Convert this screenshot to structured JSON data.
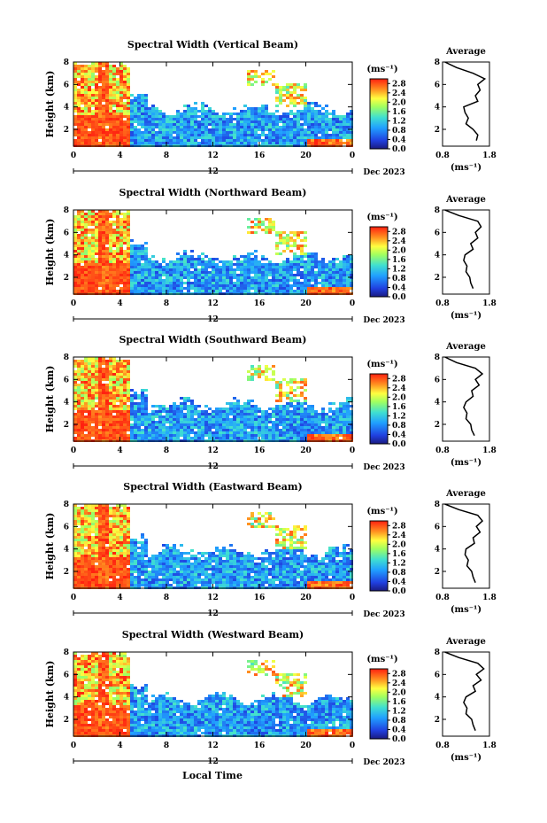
{
  "figure": {
    "xlabel": "Local Time",
    "date_label": "Dec 2023",
    "day_marker": "12",
    "colorbar_unit": "(ms⁻¹)",
    "profile_title": "Average",
    "profile_xlabel": "(ms⁻¹)"
  },
  "chart_data": [
    {
      "type": "heatmap",
      "title": "Spectral Width (Vertical Beam)",
      "xlabel": "Local Time",
      "ylabel": "Height (km)",
      "x_ticks": [
        "0",
        "4",
        "8",
        "12",
        "16",
        "20",
        "0"
      ],
      "y_ticks": [
        "2",
        "4",
        "6",
        "8"
      ],
      "xlim": [
        0,
        24
      ],
      "ylim": [
        0.5,
        8
      ],
      "colorbar": {
        "ticks": [
          "0.0",
          "0.4",
          "0.8",
          "1.2",
          "1.6",
          "2.0",
          "2.4",
          "2.8"
        ],
        "range": [
          0,
          3.0
        ]
      },
      "profile": {
        "title": "Average",
        "xlim": [
          0.8,
          1.8
        ],
        "x_ticks": [
          "0.8",
          "1.8"
        ],
        "y_ticks": [
          "2",
          "4",
          "6",
          "8"
        ],
        "height": [
          1.0,
          1.5,
          2.0,
          2.5,
          3.0,
          3.5,
          4.0,
          4.5,
          5.0,
          5.5,
          6.0,
          6.5,
          7.0,
          7.5,
          8.0
        ],
        "value": [
          1.52,
          1.55,
          1.45,
          1.3,
          1.35,
          1.28,
          1.25,
          1.55,
          1.5,
          1.6,
          1.55,
          1.7,
          1.45,
          1.1,
          0.85
        ]
      }
    },
    {
      "type": "heatmap",
      "title": "Spectral Width (Northward Beam)",
      "xlabel": "Local Time",
      "ylabel": "Height (km)",
      "x_ticks": [
        "0",
        "4",
        "8",
        "12",
        "16",
        "20",
        "0"
      ],
      "y_ticks": [
        "2",
        "4",
        "6",
        "8"
      ],
      "xlim": [
        0,
        24
      ],
      "ylim": [
        0.5,
        8
      ],
      "colorbar": {
        "ticks": [
          "0.0",
          "0.4",
          "0.8",
          "1.2",
          "1.6",
          "2.0",
          "2.4",
          "2.8"
        ],
        "range": [
          0,
          3.0
        ]
      },
      "profile": {
        "title": "Average",
        "xlim": [
          0.8,
          1.8
        ],
        "x_ticks": [
          "0.8",
          "1.8"
        ],
        "y_ticks": [
          "2",
          "4",
          "6",
          "8"
        ],
        "height": [
          1.0,
          1.5,
          2.0,
          2.5,
          3.0,
          3.5,
          4.0,
          4.5,
          5.0,
          5.5,
          6.0,
          6.5,
          7.0,
          7.5,
          8.0
        ],
        "value": [
          1.45,
          1.4,
          1.38,
          1.3,
          1.32,
          1.25,
          1.28,
          1.45,
          1.4,
          1.55,
          1.5,
          1.62,
          1.55,
          1.15,
          0.85
        ]
      }
    },
    {
      "type": "heatmap",
      "title": "Spectral Width (Southward Beam)",
      "xlabel": "Local Time",
      "ylabel": "Height (km)",
      "x_ticks": [
        "0",
        "4",
        "8",
        "12",
        "16",
        "20",
        "0"
      ],
      "y_ticks": [
        "2",
        "4",
        "6",
        "8"
      ],
      "xlim": [
        0,
        24
      ],
      "ylim": [
        0.5,
        8
      ],
      "colorbar": {
        "ticks": [
          "0.0",
          "0.4",
          "0.8",
          "1.2",
          "1.6",
          "2.0",
          "2.4",
          "2.8"
        ],
        "range": [
          0,
          3.0
        ]
      },
      "profile": {
        "title": "Average",
        "xlim": [
          0.8,
          1.8
        ],
        "x_ticks": [
          "0.8",
          "1.8"
        ],
        "y_ticks": [
          "2",
          "4",
          "6",
          "8"
        ],
        "height": [
          1.0,
          1.5,
          2.0,
          2.5,
          3.0,
          3.5,
          4.0,
          4.5,
          5.0,
          5.5,
          6.0,
          6.5,
          7.0,
          7.5,
          8.0
        ],
        "value": [
          1.48,
          1.42,
          1.4,
          1.3,
          1.32,
          1.25,
          1.3,
          1.45,
          1.42,
          1.58,
          1.5,
          1.65,
          1.5,
          1.1,
          0.85
        ]
      }
    },
    {
      "type": "heatmap",
      "title": "Spectral Width (Eastward Beam)",
      "xlabel": "Local Time",
      "ylabel": "Height (km)",
      "x_ticks": [
        "0",
        "4",
        "8",
        "12",
        "16",
        "20",
        "0"
      ],
      "y_ticks": [
        "2",
        "4",
        "6",
        "8"
      ],
      "xlim": [
        0,
        24
      ],
      "ylim": [
        0.5,
        8
      ],
      "colorbar": {
        "ticks": [
          "0.0",
          "0.4",
          "0.8",
          "1.2",
          "1.6",
          "2.0",
          "2.4",
          "2.8"
        ],
        "range": [
          0,
          3.0
        ]
      },
      "profile": {
        "title": "Average",
        "xlim": [
          0.8,
          1.8
        ],
        "x_ticks": [
          "0.8",
          "1.8"
        ],
        "y_ticks": [
          "2",
          "4",
          "6",
          "8"
        ],
        "height": [
          1.0,
          1.5,
          2.0,
          2.5,
          3.0,
          3.5,
          4.0,
          4.5,
          5.0,
          5.5,
          6.0,
          6.5,
          7.0,
          7.5,
          8.0
        ],
        "value": [
          1.5,
          1.45,
          1.42,
          1.32,
          1.35,
          1.28,
          1.3,
          1.48,
          1.45,
          1.6,
          1.52,
          1.65,
          1.55,
          1.15,
          0.85
        ]
      }
    },
    {
      "type": "heatmap",
      "title": "Spectral Width (Westward Beam)",
      "xlabel": "Local Time",
      "ylabel": "Height (km)",
      "x_ticks": [
        "0",
        "4",
        "8",
        "12",
        "16",
        "20",
        "0"
      ],
      "y_ticks": [
        "2",
        "4",
        "6",
        "8"
      ],
      "xlim": [
        0,
        24
      ],
      "ylim": [
        0.5,
        8
      ],
      "colorbar": {
        "ticks": [
          "0.0",
          "0.4",
          "0.8",
          "1.2",
          "1.6",
          "2.0",
          "2.4",
          "2.8"
        ],
        "range": [
          0,
          3.0
        ]
      },
      "profile": {
        "title": "Average",
        "xlim": [
          0.8,
          1.8
        ],
        "x_ticks": [
          "0.8",
          "1.8"
        ],
        "y_ticks": [
          "2",
          "4",
          "6",
          "8"
        ],
        "height": [
          1.0,
          1.5,
          2.0,
          2.5,
          3.0,
          3.5,
          4.0,
          4.5,
          5.0,
          5.5,
          6.0,
          6.5,
          7.0,
          7.5,
          8.0
        ],
        "value": [
          1.5,
          1.45,
          1.42,
          1.3,
          1.32,
          1.25,
          1.3,
          1.5,
          1.45,
          1.62,
          1.52,
          1.68,
          1.55,
          1.15,
          0.85
        ]
      }
    }
  ]
}
